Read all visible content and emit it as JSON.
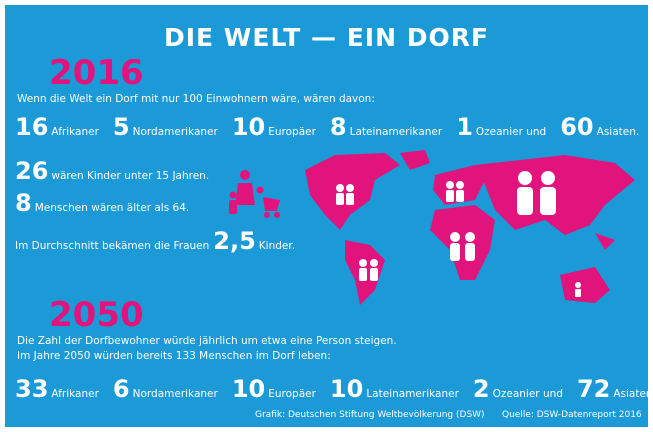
{
  "title": "DIE WELT — EIN DORF",
  "sections": [
    {
      "year": 2016,
      "intro": [
        "Wenn die Welt ein Dorf mit nur 100 Einwohnern wäre, wären davon:"
      ],
      "groups": [
        {
          "number": 16,
          "label": "Afrikaner"
        },
        {
          "number": 5,
          "label": "Nordamerikaner"
        },
        {
          "number": 10,
          "label": "Europäer"
        },
        {
          "number": 8,
          "label": "Lateinamerikaner"
        },
        {
          "number": 1,
          "label": "Ozeanier und"
        },
        {
          "number": 60,
          "label": "Asiaten."
        }
      ],
      "facts": [
        {
          "number": 26,
          "text": "wären Kinder unter 15 Jahren."
        },
        {
          "number": 8,
          "text": "Menschen wären älter als 64."
        },
        {
          "prefix": "Im Durchschnitt bekämen die Frauen",
          "number": "2,5",
          "text": "Kinder."
        }
      ]
    },
    {
      "year": 2050,
      "intro": [
        "Die Zahl der Dorfbewohner würde jährlich um etwa eine Person steigen.",
        "Im Jahre 2050 würden bereits 133 Menschen im Dorf leben:"
      ],
      "groups": [
        {
          "number": 33,
          "label": "Afrikaner"
        },
        {
          "number": 6,
          "label": "Nordamerikaner"
        },
        {
          "number": 10,
          "label": "Europäer"
        },
        {
          "number": 10,
          "label": "Lateinamerikaner"
        },
        {
          "number": 2,
          "label": "Ozeanier und"
        },
        {
          "number": 72,
          "label": "Asiaten."
        }
      ]
    }
  ],
  "footer": {
    "credit": "Grafik: Deutschen Stiftung Weltbevölkerung (DSW)",
    "source": "Quelle: DSW-Datenreport 2016"
  }
}
